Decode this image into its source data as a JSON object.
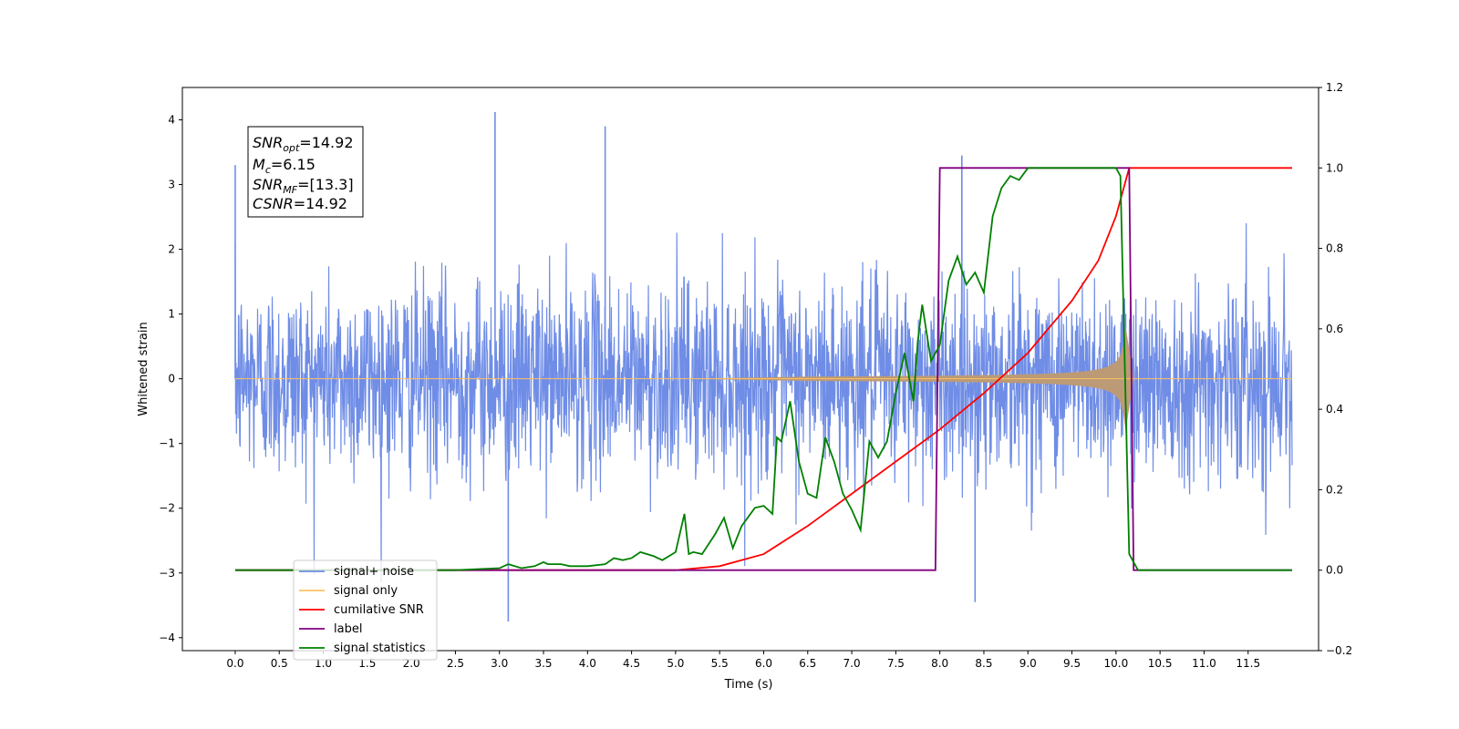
{
  "chart_data": {
    "type": "line",
    "xlabel": "Time (s)",
    "ylabel": "Whitened strain",
    "xlim": [
      -0.6,
      12.3
    ],
    "ylim_left": [
      -4.2,
      4.5
    ],
    "ylim_right": [
      -0.2,
      1.2
    ],
    "x_ticks": [
      "0.0",
      "0.5",
      "1.0",
      "1.5",
      "2.0",
      "2.5",
      "3.0",
      "3.5",
      "4.0",
      "4.5",
      "5.0",
      "5.5",
      "6.0",
      "6.5",
      "7.0",
      "7.5",
      "8.0",
      "8.5",
      "9.0",
      "9.5",
      "10.0",
      "10.5",
      "11.0",
      "11.5"
    ],
    "y_left_ticks": [
      "4",
      "3",
      "2",
      "1",
      "0",
      "−1",
      "−2",
      "−3",
      "−4"
    ],
    "y_right_ticks": [
      "1.2",
      "1.0",
      "0.8",
      "0.6",
      "0.4",
      "0.2",
      "0.0",
      "−0.2"
    ],
    "grid": false,
    "legend_placement": "lower-left",
    "colors": {
      "noise": "#6f8de6",
      "signal": "#ffc061",
      "overlap": "#bc9a76",
      "csnr": "#ff0000",
      "label": "#800080",
      "stats": "#008000"
    },
    "annotation": {
      "line1_main": "SNR",
      "line1_sub": "opt",
      "line1_rest": "=14.92",
      "line2_main": "M",
      "line2_sub": "c",
      "line2_rest": "=6.15",
      "line3_main": "SNR",
      "line3_sub": "MF",
      "line3_rest": "=[13.3]",
      "line4_main": "CSNR",
      "line4_rest": "=14.92"
    },
    "series": [
      {
        "name": "signal+ noise",
        "axis": "left",
        "description_values": {
          "x_range": [
            0.0,
            12.0
          ],
          "noise_std": 0.75,
          "peak_max": 4.12,
          "peak_min": -3.75
        }
      },
      {
        "name": "signal only",
        "axis": "left",
        "description_values": {
          "x_start": 5.0,
          "x_merger": 10.1,
          "max_amplitude": 0.9
        }
      },
      {
        "name": "cumilative SNR",
        "axis": "right",
        "x": [
          0.0,
          4.5,
          5.0,
          5.5,
          6.0,
          6.5,
          7.0,
          7.5,
          8.0,
          8.5,
          9.0,
          9.5,
          9.8,
          10.0,
          10.15,
          12.0
        ],
        "y": [
          0.0,
          0.0,
          0.0,
          0.01,
          0.04,
          0.11,
          0.19,
          0.27,
          0.35,
          0.44,
          0.54,
          0.67,
          0.77,
          0.88,
          1.0,
          1.0
        ]
      },
      {
        "name": "label",
        "axis": "right",
        "x": [
          0.0,
          7.95,
          8.0,
          10.15,
          10.2,
          12.0
        ],
        "y": [
          0.0,
          0.0,
          1.0,
          1.0,
          0.0,
          0.0
        ]
      },
      {
        "name": "signal statistics",
        "axis": "right",
        "x": [
          0.0,
          2.5,
          3.0,
          3.1,
          3.25,
          3.4,
          3.5,
          3.55,
          3.7,
          3.8,
          4.0,
          4.2,
          4.3,
          4.4,
          4.5,
          4.6,
          4.75,
          4.85,
          5.0,
          5.1,
          5.15,
          5.2,
          5.3,
          5.45,
          5.55,
          5.65,
          5.75,
          5.9,
          6.0,
          6.1,
          6.15,
          6.2,
          6.3,
          6.4,
          6.5,
          6.6,
          6.7,
          6.8,
          6.9,
          7.0,
          7.1,
          7.2,
          7.3,
          7.4,
          7.5,
          7.6,
          7.7,
          7.75,
          7.8,
          7.9,
          8.0,
          8.1,
          8.2,
          8.3,
          8.4,
          8.5,
          8.6,
          8.7,
          8.8,
          8.9,
          9.0,
          9.1,
          9.2,
          9.3,
          9.5,
          10.0,
          10.05,
          10.15,
          10.25,
          12.0
        ],
        "y": [
          0.0,
          0.0,
          0.005,
          0.015,
          0.005,
          0.01,
          0.02,
          0.015,
          0.015,
          0.01,
          0.01,
          0.015,
          0.03,
          0.025,
          0.03,
          0.045,
          0.035,
          0.025,
          0.045,
          0.14,
          0.04,
          0.045,
          0.04,
          0.09,
          0.13,
          0.055,
          0.11,
          0.155,
          0.16,
          0.14,
          0.33,
          0.32,
          0.42,
          0.27,
          0.19,
          0.18,
          0.33,
          0.27,
          0.19,
          0.15,
          0.1,
          0.32,
          0.28,
          0.32,
          0.44,
          0.54,
          0.42,
          0.57,
          0.66,
          0.52,
          0.56,
          0.72,
          0.78,
          0.71,
          0.74,
          0.69,
          0.88,
          0.95,
          0.98,
          0.97,
          1.0,
          1.0,
          1.0,
          1.0,
          1.0,
          1.0,
          0.98,
          0.04,
          0.0,
          0.0
        ]
      }
    ],
    "legend": [
      {
        "label": "signal+ noise",
        "color": "#6f8de6"
      },
      {
        "label": "signal only",
        "color": "#ffc061"
      },
      {
        "label": "cumilative SNR",
        "color": "#ff0000"
      },
      {
        "label": "label",
        "color": "#800080"
      },
      {
        "label": "signal statistics",
        "color": "#008000"
      }
    ]
  }
}
